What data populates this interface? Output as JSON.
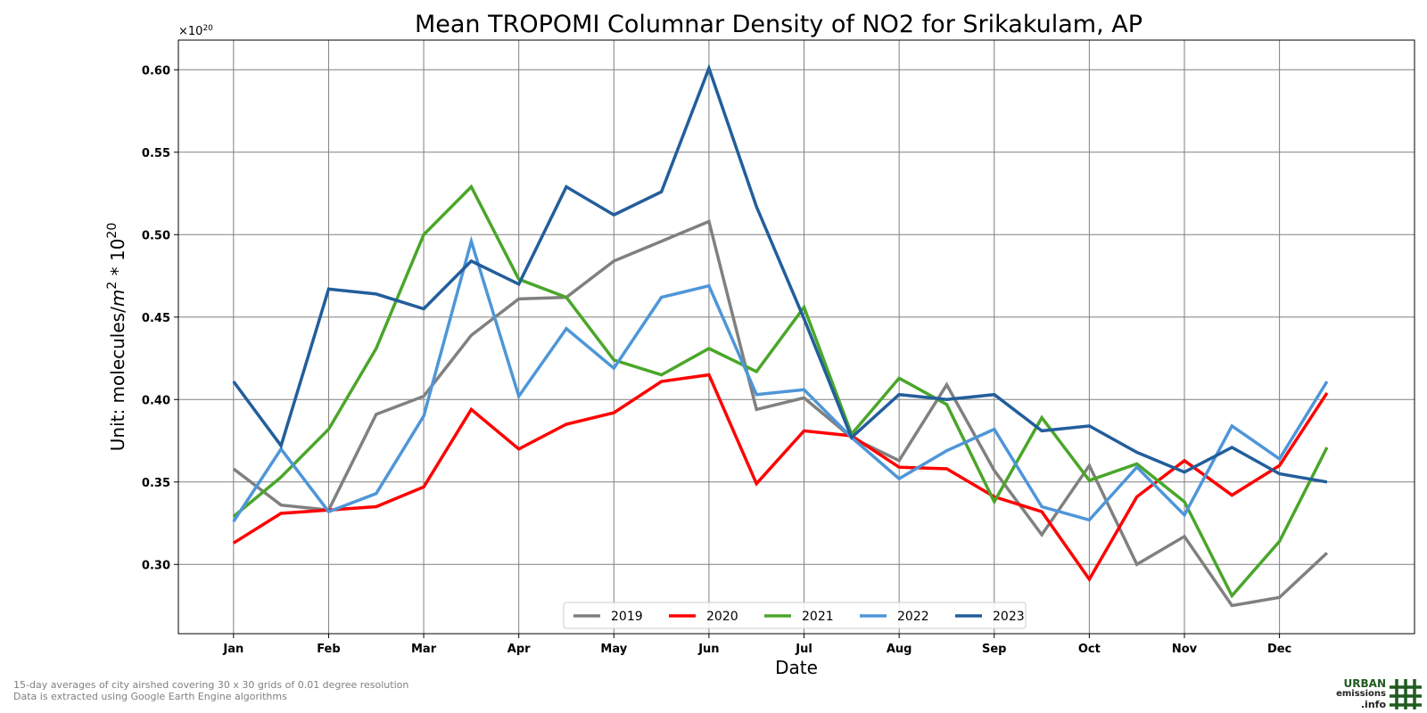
{
  "chart_data": {
    "type": "line",
    "title": "Mean TROPOMI Columnar Density of NO2 for Srikakulam, AP",
    "xlabel": "Date",
    "ylabel_prefix": "Unit: molecules/",
    "ylabel_m": "m",
    "ylabel_m_exp": "2",
    "ylabel_mid": " * 10",
    "ylabel_exp": "20",
    "offset_base": "×10",
    "offset_exp": "20",
    "months": [
      "Jan",
      "Feb",
      "Mar",
      "Apr",
      "May",
      "Jun",
      "Jul",
      "Aug",
      "Sep",
      "Oct",
      "Nov",
      "Dec"
    ],
    "yticks": [
      0.3,
      0.35,
      0.4,
      0.45,
      0.5,
      0.55,
      0.6
    ],
    "ylim": [
      0.258,
      0.618
    ],
    "xlim": [
      -0.58,
      12.42
    ],
    "grid": true,
    "legend_position": "bottom-center",
    "x": [
      0,
      0.5,
      1,
      1.5,
      2,
      2.5,
      3,
      3.5,
      4,
      4.5,
      5,
      5.5,
      6,
      6.5,
      7,
      7.5,
      8,
      8.5,
      9,
      9.5,
      10,
      10.5,
      11,
      11.5
    ],
    "series": [
      {
        "name": "2019",
        "color": "#808080",
        "values": [
          0.358,
          0.336,
          0.333,
          0.391,
          0.402,
          0.439,
          0.461,
          0.462,
          0.484,
          0.496,
          0.508,
          0.394,
          0.401,
          0.377,
          0.363,
          0.409,
          0.357,
          0.318,
          0.36,
          0.3,
          0.317,
          0.275,
          0.28,
          0.307
        ]
      },
      {
        "name": "2020",
        "color": "#ff0000",
        "values": [
          0.313,
          0.331,
          0.333,
          0.335,
          0.347,
          0.394,
          0.37,
          0.385,
          0.392,
          0.411,
          0.415,
          0.349,
          0.381,
          0.378,
          0.359,
          0.358,
          0.341,
          0.332,
          0.291,
          0.341,
          0.363,
          0.342,
          0.36,
          0.404
        ]
      },
      {
        "name": "2021",
        "color": "#4aa62a",
        "values": [
          0.329,
          0.353,
          0.382,
          0.431,
          0.5,
          0.529,
          0.473,
          0.462,
          0.424,
          0.415,
          0.431,
          0.417,
          0.456,
          0.379,
          0.413,
          0.397,
          0.338,
          0.389,
          0.351,
          0.361,
          0.338,
          0.281,
          0.314,
          0.371
        ]
      },
      {
        "name": "2022",
        "color": "#4e96d8",
        "values": [
          0.326,
          0.37,
          0.332,
          0.343,
          0.39,
          0.496,
          0.402,
          0.443,
          0.419,
          0.462,
          0.469,
          0.403,
          0.406,
          0.377,
          0.352,
          0.369,
          0.382,
          0.335,
          0.327,
          0.359,
          0.33,
          0.384,
          0.364,
          0.411
        ]
      },
      {
        "name": "2023",
        "color": "#225e9b",
        "values": [
          0.411,
          0.372,
          0.467,
          0.464,
          0.455,
          0.484,
          0.47,
          0.529,
          0.512,
          0.526,
          0.601,
          0.517,
          0.449,
          0.377,
          0.403,
          0.4,
          0.403,
          0.381,
          0.384,
          0.368,
          0.356,
          0.371,
          0.355,
          0.35
        ]
      }
    ]
  },
  "footnote": {
    "line1": "15-day averages of city airshed covering 30 x 30 grids of 0.01 degree resolution",
    "line2": "Data is extracted using Google Earth Engine algorithms"
  },
  "logo": {
    "line1": "URBAN",
    "line2": "emissions",
    "line3": ".info",
    "color": "#1f5a1f"
  }
}
